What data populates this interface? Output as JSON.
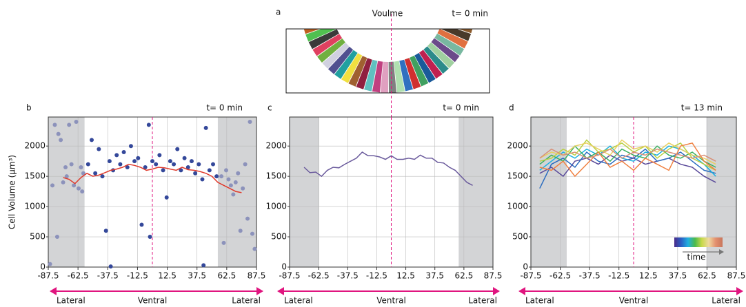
{
  "panel_a": {
    "panel": "a",
    "title": "Voulme",
    "time_label": "t= 0 min"
  },
  "chart_data": [
    {
      "type": "scatter",
      "panel": "b",
      "time_label": "t= 0 min",
      "y_label": "Cell Volume (µm³)",
      "region_labels": [
        "Lateral",
        "Ventral",
        "Lateral"
      ],
      "xlim": [
        -87.5,
        87.5
      ],
      "xticks": [
        -87.5,
        -62.5,
        -37.5,
        -12.5,
        12.5,
        37.5,
        62.5,
        87.5
      ],
      "ylim": [
        0,
        2480
      ],
      "yticks": [
        0,
        500,
        1000,
        1500,
        2000
      ],
      "grid": true,
      "center_line": 0,
      "shaded": [
        [
          -87.5,
          -57
        ],
        [
          55,
          87.5
        ]
      ],
      "series": [
        {
          "type": "scatter",
          "color": "#8c92bb",
          "x": [
            -86,
            -84,
            -82,
            -80,
            -79,
            -77,
            -75,
            -73,
            -72,
            -70,
            -68,
            -66,
            -64,
            -62,
            -60,
            -59,
            -58,
            58,
            60,
            62,
            64,
            66,
            68,
            70,
            72,
            74,
            76,
            78,
            80,
            82,
            84,
            86
          ],
          "values": [
            50,
            1350,
            2350,
            500,
            2200,
            2100,
            1400,
            1650,
            1500,
            2350,
            1700,
            1350,
            2400,
            1300,
            1650,
            1250,
            1550,
            1500,
            400,
            1600,
            1450,
            1350,
            1200,
            1400,
            1550,
            600,
            1300,
            1700,
            800,
            2400,
            550,
            300
          ]
        },
        {
          "type": "scatter",
          "color": "#34489a",
          "x": [
            -54,
            -51,
            -48,
            -45,
            -42,
            -39,
            -36,
            -33,
            -30,
            -27,
            -24,
            -21,
            -18,
            -15,
            -12,
            -9,
            -6,
            -3,
            0,
            3,
            6,
            9,
            12,
            15,
            18,
            21,
            24,
            27,
            30,
            33,
            36,
            39,
            42,
            45,
            48,
            51,
            54,
            -35,
            43,
            -2
          ],
          "values": [
            1700,
            2100,
            1550,
            1950,
            1500,
            600,
            1750,
            1600,
            1850,
            1700,
            1900,
            1650,
            2000,
            1750,
            1800,
            700,
            1650,
            2350,
            1750,
            1700,
            1850,
            1600,
            1150,
            1750,
            1700,
            1950,
            1600,
            1800,
            1650,
            1750,
            1550,
            1700,
            1450,
            2300,
            1600,
            1700,
            1500,
            10,
            30,
            500
          ]
        },
        {
          "type": "line",
          "color": "#e0392b",
          "x": [
            -75,
            -70,
            -65,
            -60,
            -55,
            -50,
            -45,
            -40,
            -35,
            -30,
            -25,
            -20,
            -15,
            -10,
            -5,
            0,
            5,
            10,
            15,
            20,
            25,
            30,
            35,
            40,
            45,
            50,
            55,
            60,
            65,
            70,
            75
          ],
          "values": [
            1480,
            1450,
            1380,
            1480,
            1550,
            1500,
            1520,
            1560,
            1600,
            1620,
            1650,
            1700,
            1680,
            1650,
            1600,
            1620,
            1650,
            1640,
            1620,
            1600,
            1650,
            1610,
            1600,
            1580,
            1550,
            1500,
            1400,
            1350,
            1300,
            1250,
            1230
          ]
        }
      ]
    },
    {
      "type": "line",
      "panel": "c",
      "time_label": "t= 0 min",
      "region_labels": [
        "Lateral",
        "Ventral",
        "Lateral"
      ],
      "xlim": [
        -87.5,
        87.5
      ],
      "xticks": [
        -87.5,
        -62.5,
        -37.5,
        -12.5,
        12.5,
        37.5,
        62.5,
        87.5
      ],
      "ylim": [
        0,
        2480
      ],
      "yticks": [
        0,
        500,
        1000,
        1500,
        2000
      ],
      "grid": true,
      "center_line": 0,
      "shaded": [
        [
          -87.5,
          -62
        ],
        [
          58,
          87.5
        ]
      ],
      "x": [
        -75,
        -70,
        -65,
        -60,
        -55,
        -50,
        -45,
        -40,
        -35,
        -30,
        -25,
        -20,
        -15,
        -10,
        -5,
        0,
        5,
        10,
        15,
        20,
        25,
        30,
        35,
        40,
        45,
        50,
        55,
        60,
        65,
        70
      ],
      "series": [
        {
          "color": "#6a5a9c",
          "values": [
            1650,
            1560,
            1570,
            1500,
            1600,
            1650,
            1640,
            1700,
            1750,
            1800,
            1900,
            1840,
            1840,
            1820,
            1780,
            1840,
            1780,
            1780,
            1800,
            1780,
            1850,
            1800,
            1800,
            1730,
            1720,
            1650,
            1600,
            1500,
            1400,
            1350
          ]
        }
      ]
    },
    {
      "type": "line",
      "panel": "d",
      "time_label": "t= 13 min",
      "colorbar_label": "time",
      "colorbar_colors": [
        "#4b2c8a",
        "#2a5fc4",
        "#22b0e0",
        "#4cba4c",
        "#c9d94a",
        "#efd9a0",
        "#e38f6f",
        "#c8765c"
      ],
      "region_labels": [
        "Lateral",
        "Ventral",
        "Lateral"
      ],
      "xlim": [
        -87.5,
        87.5
      ],
      "xticks": [
        -87.5,
        -62.5,
        -37.5,
        -12.5,
        12.5,
        37.5,
        62.5,
        87.5
      ],
      "ylim": [
        0,
        2480
      ],
      "yticks": [
        0,
        500,
        1000,
        1500,
        2000
      ],
      "grid": true,
      "center_line": 0,
      "shaded": [
        [
          -87.5,
          -57
        ],
        [
          62,
          87.5
        ]
      ],
      "x": [
        -80,
        -70,
        -60,
        -50,
        -40,
        -30,
        -20,
        -10,
        0,
        10,
        20,
        30,
        40,
        50,
        60,
        70
      ],
      "series": [
        {
          "color": "#5a4a9a",
          "values": [
            1550,
            1650,
            1500,
            1750,
            1800,
            1700,
            1850,
            1750,
            1800,
            1700,
            1750,
            1800,
            1700,
            1650,
            1500,
            1400
          ]
        },
        {
          "color": "#2a6cc0",
          "values": [
            1300,
            1700,
            1800,
            1650,
            1900,
            1750,
            1700,
            1850,
            1800,
            1950,
            1750,
            1800,
            1900,
            1750,
            1600,
            1550
          ]
        },
        {
          "color": "#1ab0e0",
          "values": [
            1600,
            1750,
            1900,
            1800,
            1950,
            1850,
            2000,
            1800,
            1750,
            1900,
            1850,
            2000,
            1950,
            1850,
            1700,
            1500
          ]
        },
        {
          "color": "#3cb060",
          "values": [
            1700,
            1850,
            1750,
            2000,
            1800,
            1900,
            1750,
            1950,
            1850,
            1800,
            2000,
            1850,
            1800,
            1900,
            1750,
            1650
          ]
        },
        {
          "color": "#b8d040",
          "values": [
            1750,
            1800,
            1950,
            1850,
            2100,
            1900,
            1950,
            2050,
            1900,
            2000,
            1800,
            1950,
            2050,
            1800,
            1700,
            1600
          ]
        },
        {
          "color": "#e8d060",
          "values": [
            1800,
            1900,
            1850,
            2000,
            2050,
            1950,
            1850,
            2100,
            1950,
            2000,
            1900,
            2050,
            1950,
            1850,
            1800,
            1700
          ]
        },
        {
          "color": "#f08040",
          "values": [
            1650,
            1600,
            1750,
            1500,
            1700,
            1900,
            1650,
            1750,
            1600,
            1800,
            1700,
            1600,
            2000,
            2050,
            1750,
            1600
          ]
        },
        {
          "color": "#d89078",
          "values": [
            1800,
            1950,
            1850,
            1900,
            1800,
            1850,
            1950,
            1800,
            1900,
            1850,
            1950,
            1900,
            1850,
            1800,
            1850,
            1750
          ]
        }
      ]
    }
  ]
}
